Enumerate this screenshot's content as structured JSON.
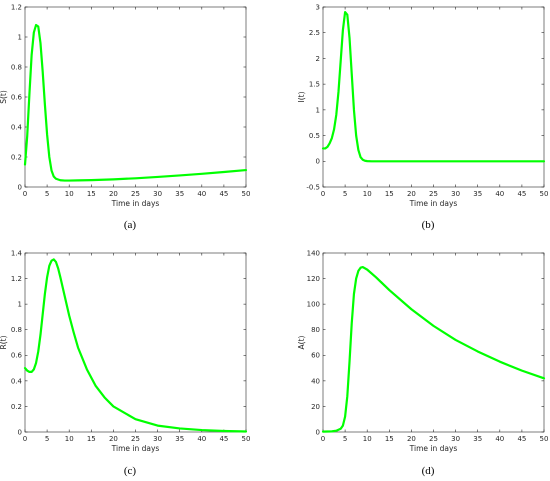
{
  "chart_data": [
    {
      "type": "line",
      "panel_label": "(a)",
      "xlabel": "Time in days",
      "ylabel": "S(t)",
      "xlim": [
        0,
        50
      ],
      "ylim": [
        0,
        1.2
      ],
      "xticks": [
        "0",
        "5",
        "10",
        "15",
        "20",
        "25",
        "30",
        "35",
        "40",
        "45",
        "50"
      ],
      "yticks": [
        "0",
        "0.2",
        "0.4",
        "0.6",
        "0.8",
        "1",
        "1.2"
      ],
      "color": "#00ff00",
      "series": [
        {
          "x": [
            0,
            0.5,
            1,
            1.5,
            2,
            2.5,
            3,
            3.5,
            4,
            4.5,
            5,
            5.5,
            6,
            6.5,
            7,
            8,
            9,
            10,
            12,
            15,
            20,
            25,
            30,
            35,
            40,
            45,
            50
          ],
          "y": [
            0.15,
            0.34,
            0.62,
            0.88,
            1.03,
            1.08,
            1.07,
            0.96,
            0.77,
            0.55,
            0.35,
            0.2,
            0.11,
            0.07,
            0.055,
            0.045,
            0.043,
            0.043,
            0.044,
            0.046,
            0.051,
            0.058,
            0.067,
            0.077,
            0.088,
            0.1,
            0.113
          ]
        }
      ]
    },
    {
      "type": "line",
      "panel_label": "(b)",
      "xlabel": "Time in days",
      "ylabel": "I(t)",
      "xlim": [
        0,
        50
      ],
      "ylim": [
        -0.5,
        3
      ],
      "xticks": [
        "0",
        "5",
        "10",
        "15",
        "20",
        "25",
        "30",
        "35",
        "40",
        "45",
        "50"
      ],
      "yticks": [
        "-0.5",
        "0",
        "0.5",
        "1",
        "1.5",
        "2",
        "2.5",
        "3"
      ],
      "color": "#00ff00",
      "series": [
        {
          "x": [
            0,
            0.5,
            1,
            1.5,
            2,
            2.5,
            3,
            3.5,
            4,
            4.5,
            5,
            5.5,
            6,
            6.5,
            7,
            7.5,
            8,
            8.5,
            9,
            9.5,
            10,
            11,
            12,
            15,
            20,
            30,
            40,
            50
          ],
          "y": [
            0.25,
            0.25,
            0.28,
            0.35,
            0.45,
            0.62,
            0.9,
            1.35,
            1.95,
            2.55,
            2.9,
            2.85,
            2.4,
            1.7,
            1.0,
            0.5,
            0.22,
            0.08,
            0.03,
            0.01,
            0.003,
            0.0,
            0.0,
            0.0,
            0.0,
            0.0,
            0.0,
            0.0
          ]
        }
      ]
    },
    {
      "type": "line",
      "panel_label": "(c)",
      "xlabel": "Time in days",
      "ylabel": "R(t)",
      "xlim": [
        0,
        50
      ],
      "ylim": [
        0,
        1.4
      ],
      "xticks": [
        "0",
        "5",
        "10",
        "15",
        "20",
        "25",
        "30",
        "35",
        "40",
        "45",
        "50"
      ],
      "yticks": [
        "0",
        "0.2",
        "0.4",
        "0.6",
        "0.8",
        "1",
        "1.2",
        "1.4"
      ],
      "color": "#00ff00",
      "series": [
        {
          "x": [
            0,
            0.5,
            1,
            1.5,
            2,
            2.5,
            3,
            3.5,
            4,
            4.5,
            5,
            5.5,
            6,
            6.5,
            7,
            7.5,
            8,
            9,
            10,
            11,
            12,
            14,
            16,
            18,
            20,
            25,
            30,
            35,
            40,
            45,
            50
          ],
          "y": [
            0.5,
            0.48,
            0.47,
            0.47,
            0.49,
            0.54,
            0.63,
            0.76,
            0.92,
            1.08,
            1.21,
            1.3,
            1.34,
            1.35,
            1.33,
            1.28,
            1.21,
            1.06,
            0.91,
            0.78,
            0.66,
            0.49,
            0.36,
            0.27,
            0.2,
            0.1,
            0.05,
            0.028,
            0.015,
            0.008,
            0.004
          ]
        }
      ]
    },
    {
      "type": "line",
      "panel_label": "(d)",
      "xlabel": "Time in days",
      "ylabel": "A(t)",
      "xlim": [
        0,
        50
      ],
      "ylim": [
        0,
        140
      ],
      "xticks": [
        "0",
        "5",
        "10",
        "15",
        "20",
        "25",
        "30",
        "35",
        "40",
        "45",
        "50"
      ],
      "yticks": [
        "0",
        "20",
        "40",
        "60",
        "80",
        "100",
        "120",
        "140"
      ],
      "color": "#00ff00",
      "series": [
        {
          "x": [
            0,
            2,
            3,
            4,
            4.5,
            5,
            5.5,
            6,
            6.5,
            7,
            7.5,
            8,
            8.5,
            9,
            10,
            12,
            15,
            20,
            25,
            30,
            35,
            40,
            45,
            50
          ],
          "y": [
            0.3,
            0.5,
            1,
            2.5,
            5,
            12,
            28,
            55,
            85,
            108,
            120,
            126,
            128.5,
            129,
            127,
            121,
            111,
            96,
            83,
            72,
            63,
            55,
            48,
            42
          ]
        }
      ]
    }
  ]
}
